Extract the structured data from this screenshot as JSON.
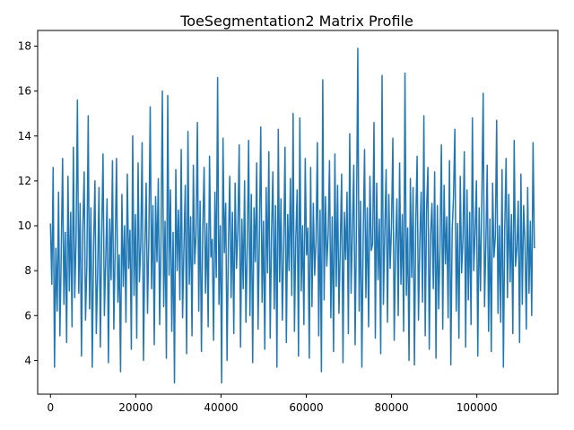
{
  "chart_data": {
    "type": "line",
    "title": "ToeSegmentation2 Matrix Profile",
    "xlabel": "",
    "ylabel": "",
    "xlim": [
      -3000,
      119000
    ],
    "ylim": [
      2.5,
      18.7
    ],
    "x_ticks": [
      0,
      20000,
      40000,
      60000,
      80000,
      100000
    ],
    "y_ticks": [
      4,
      6,
      8,
      10,
      12,
      14,
      16,
      18
    ],
    "grid": false,
    "legend": "none",
    "series_color": "#1f77b4",
    "series": [
      {
        "x_start": 0,
        "x_end": 113500,
        "values": [
          10.1,
          7.4,
          12.6,
          3.7,
          9.0,
          6.2,
          11.5,
          5.1,
          8.8,
          13.0,
          6.5,
          9.7,
          4.8,
          12.2,
          7.1,
          10.6,
          5.5,
          13.5,
          6.8,
          9.4,
          15.6,
          7.0,
          11.0,
          4.2,
          9.9,
          12.4,
          5.8,
          8.2,
          14.9,
          6.3,
          10.8,
          3.7,
          9.1,
          12.0,
          5.2,
          7.9,
          11.7,
          4.6,
          9.6,
          13.2,
          6.0,
          8.5,
          11.2,
          3.9,
          10.3,
          7.6,
          12.9,
          5.4,
          9.0,
          13.0,
          6.6,
          8.7,
          3.5,
          11.4,
          7.3,
          10.0,
          5.7,
          12.3,
          8.1,
          9.8,
          4.5,
          14.0,
          6.9,
          10.5,
          5.0,
          12.8,
          7.5,
          9.2,
          13.7,
          4.0,
          8.9,
          11.9,
          6.1,
          9.5,
          15.3,
          7.2,
          10.9,
          4.7,
          11.3,
          8.4,
          12.1,
          5.6,
          9.3,
          16.0,
          6.4,
          10.2,
          4.1,
          15.8,
          7.8,
          11.6,
          5.3,
          9.7,
          3.0,
          12.5,
          8.0,
          10.7,
          6.7,
          13.4,
          5.9,
          9.0,
          11.8,
          4.3,
          14.2,
          7.4,
          10.4,
          5.1,
          12.7,
          8.3,
          9.6,
          14.6,
          6.2,
          11.1,
          4.4,
          9.9,
          12.6,
          7.0,
          10.1,
          5.5,
          13.1,
          8.6,
          9.4,
          4.9,
          11.5,
          7.7,
          16.6,
          6.5,
          10.0,
          3.0,
          13.9,
          8.8,
          11.0,
          4.0,
          9.2,
          12.2,
          6.8,
          10.6,
          5.2,
          11.9,
          8.1,
          9.8,
          13.6,
          4.6,
          10.3,
          7.2,
          12.0,
          5.7,
          9.1,
          13.8,
          6.0,
          11.4,
          3.9,
          10.8,
          8.4,
          12.8,
          5.4,
          9.5,
          14.4,
          6.6,
          10.2,
          4.5,
          11.7,
          7.9,
          13.3,
          5.0,
          9.7,
          12.4,
          6.3,
          10.9,
          3.7,
          14.3,
          7.5,
          11.2,
          5.8,
          9.0,
          13.5,
          4.8,
          10.5,
          8.0,
          12.1,
          6.9,
          15.0,
          5.3,
          9.4,
          11.6,
          4.2,
          14.8,
          7.1,
          10.0,
          5.6,
          13.0,
          8.7,
          9.9,
          4.1,
          12.6,
          6.4,
          11.0,
          7.8,
          9.3,
          13.7,
          5.1,
          10.7,
          3.5,
          16.5,
          6.7,
          11.3,
          8.2,
          9.6,
          12.9,
          5.9,
          10.4,
          4.4,
          13.2,
          7.3,
          11.8,
          6.1,
          9.1,
          12.3,
          3.9,
          10.6,
          8.5,
          11.5,
          5.2,
          14.1,
          7.0,
          9.8,
          12.7,
          4.7,
          10.1,
          17.9,
          6.2,
          11.1,
          3.7,
          9.5,
          13.4,
          6.8,
          10.8,
          5.5,
          12.2,
          8.9,
          9.2,
          14.6,
          5.0,
          11.9,
          7.6,
          10.3,
          4.3,
          16.7,
          6.5,
          9.7,
          12.5,
          5.7,
          11.4,
          8.1,
          10.0,
          13.9,
          4.9,
          9.0,
          11.2,
          6.0,
          12.8,
          7.4,
          10.5,
          5.3,
          16.8,
          6.9,
          9.9,
          4.0,
          12.1,
          7.7,
          11.7,
          3.8,
          10.2,
          13.1,
          5.8,
          9.3,
          11.5,
          6.6,
          14.9,
          5.1,
          10.7,
          12.6,
          4.5,
          9.6,
          11.0,
          7.2,
          12.4,
          4.1,
          10.9,
          6.3,
          9.1,
          13.6,
          5.4,
          11.8,
          8.3,
          10.4,
          5.9,
          12.9,
          3.8,
          9.8,
          11.3,
          14.3,
          6.2,
          10.1,
          5.0,
          12.2,
          7.9,
          9.4,
          13.3,
          4.6,
          11.6,
          6.7,
          10.6,
          5.6,
          14.8,
          8.0,
          9.7,
          12.0,
          4.2,
          10.8,
          7.1,
          11.2,
          15.9,
          6.4,
          9.2,
          12.7,
          5.3,
          10.3,
          4.4,
          11.9,
          8.6,
          9.5,
          14.7,
          6.1,
          10.0,
          5.7,
          12.5,
          3.7,
          9.9,
          13.0,
          6.8,
          11.4,
          7.5,
          10.5,
          5.2,
          13.8,
          8.2,
          9.0,
          11.1,
          4.8,
          12.3,
          6.5,
          10.9,
          9.3,
          5.4,
          11.7,
          7.0,
          10.2,
          6.0,
          13.7,
          9.0
        ]
      }
    ]
  }
}
